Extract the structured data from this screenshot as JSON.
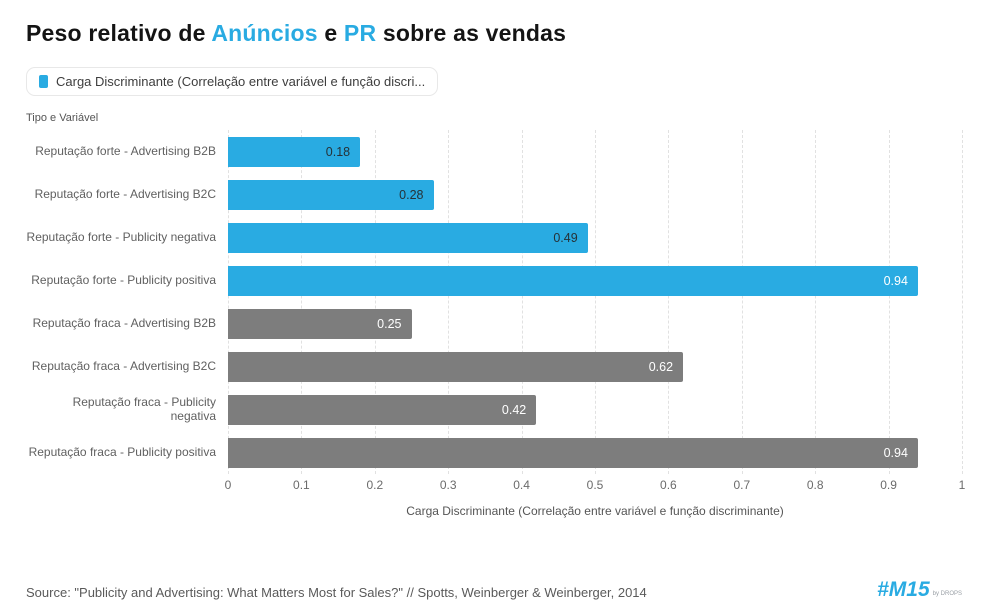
{
  "colors": {
    "accent": "#29abe2",
    "bar_blue": "#29abe2",
    "bar_gray": "#7d7d7d",
    "value_label_dark": "#263238",
    "value_label_light": "#ffffff"
  },
  "title": {
    "parts": [
      {
        "text": "Peso relativo de "
      },
      {
        "text": "Anúncios"
      },
      {
        "text": " e "
      },
      {
        "text": "PR"
      },
      {
        "text": " sobre as vendas"
      }
    ]
  },
  "legend": {
    "label": "Carga Discriminante (Correlação entre variável e função discri..."
  },
  "chart_data": {
    "type": "bar",
    "orientation": "horizontal",
    "y_axis_title": "Tipo e Variável",
    "x_axis": {
      "label": "Carga Discriminante (Correlação entre variável e função discriminante)",
      "ticks": [
        "0",
        "0.1",
        "0.2",
        "0.3",
        "0.4",
        "0.5",
        "0.6",
        "0.7",
        "0.8",
        "0.9",
        "1"
      ],
      "range": [
        0,
        1
      ],
      "gridlines": "dashed"
    },
    "bars": [
      {
        "label": "Reputação forte - Advertising B2B",
        "value": 0.18,
        "value_display": "0.18",
        "color": "#29abe2",
        "value_label_color": "#263238"
      },
      {
        "label": "Reputação forte - Advertising B2C",
        "value": 0.28,
        "value_display": "0.28",
        "color": "#29abe2",
        "value_label_color": "#263238"
      },
      {
        "label": "Reputação forte - Publicity negativa",
        "value": 0.49,
        "value_display": "0.49",
        "color": "#29abe2",
        "value_label_color": "#263238"
      },
      {
        "label": "Reputação forte - Publicity positiva",
        "value": 0.94,
        "value_display": "0.94",
        "color": "#29abe2",
        "value_label_color": "#ffffff"
      },
      {
        "label": "Reputação fraca - Advertising B2B",
        "value": 0.25,
        "value_display": "0.25",
        "color": "#7d7d7d",
        "value_label_color": "#ffffff"
      },
      {
        "label": "Reputação fraca - Advertising B2C",
        "value": 0.62,
        "value_display": "0.62",
        "color": "#7d7d7d",
        "value_label_color": "#ffffff"
      },
      {
        "label": "Reputação fraca - Publicity negativa",
        "value": 0.42,
        "value_display": "0.42",
        "color": "#7d7d7d",
        "value_label_color": "#ffffff"
      },
      {
        "label": "Reputação fraca - Publicity positiva",
        "value": 0.94,
        "value_display": "0.94",
        "color": "#7d7d7d",
        "value_label_color": "#ffffff"
      }
    ]
  },
  "footer": {
    "source": "Source: \"Publicity and Advertising: What Matters Most for Sales?\" // Spotts, Weinberger & Weinberger, 2014",
    "logo": "#M15",
    "logo_sub": "by DROPS"
  }
}
